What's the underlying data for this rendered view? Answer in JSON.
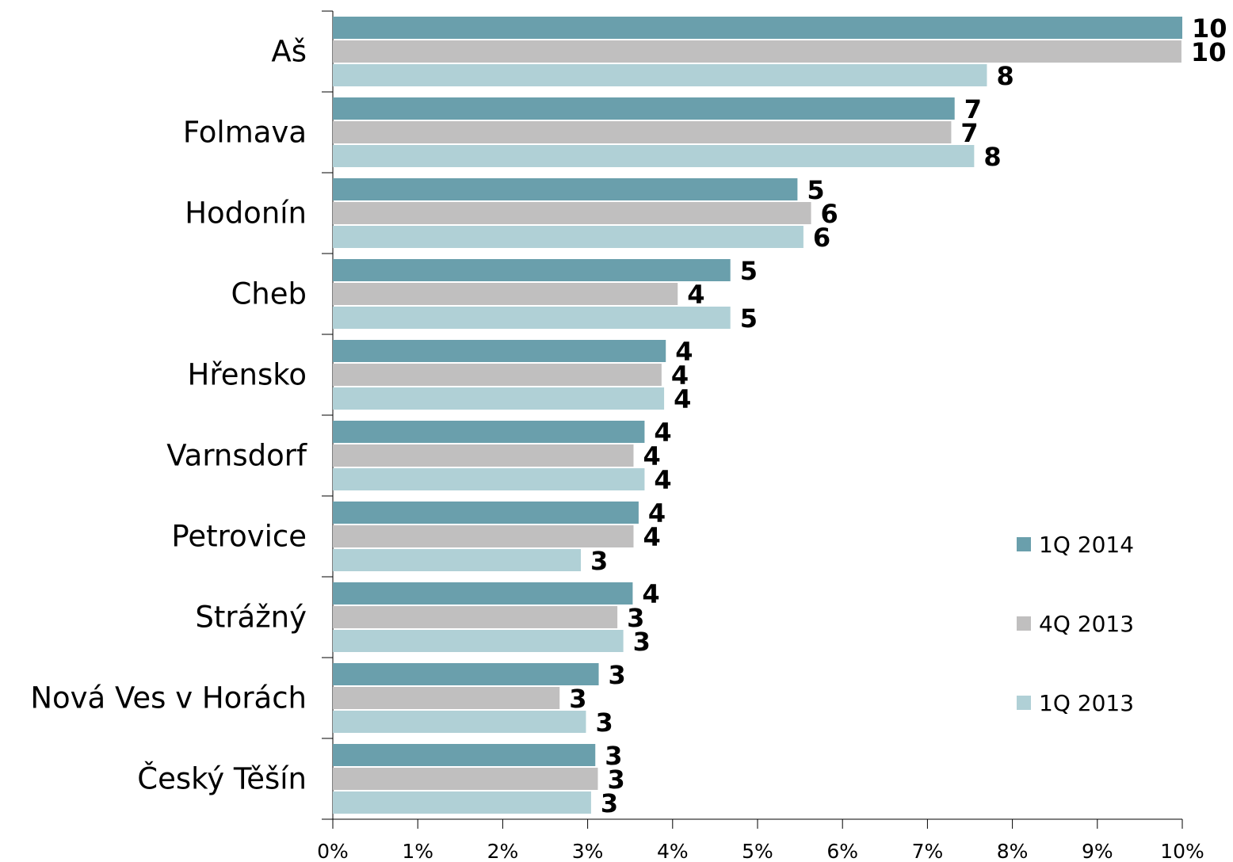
{
  "chart_data": {
    "type": "bar",
    "orientation": "horizontal",
    "categories": [
      "Aš",
      "Folmava",
      "Hodonín",
      "Cheb",
      "Hřensko",
      "Varnsdorf",
      "Petrovice",
      "Strážný",
      "Nová Ves v Horách",
      "Český Těšín"
    ],
    "series": [
      {
        "name": "1Q 2014",
        "color": "#6a9fac",
        "values": [
          10.0,
          7.32,
          5.47,
          4.68,
          3.92,
          3.67,
          3.6,
          3.53,
          3.13,
          3.09
        ],
        "value_labels": [
          "10",
          "7",
          "5",
          "5",
          "4",
          "4",
          "4",
          "4",
          "3",
          "3"
        ]
      },
      {
        "name": "4Q 2013",
        "color": "#c0bfbf",
        "values": [
          9.99,
          7.28,
          5.63,
          4.06,
          3.87,
          3.54,
          3.54,
          3.35,
          2.67,
          3.12
        ],
        "value_labels": [
          "10",
          "7",
          "6",
          "4",
          "4",
          "4",
          "4",
          "3",
          "3",
          "3"
        ]
      },
      {
        "name": "1Q 2013",
        "color": "#b0d0d6",
        "values": [
          7.7,
          7.55,
          5.54,
          4.68,
          3.9,
          3.67,
          2.92,
          3.42,
          2.98,
          3.04
        ],
        "value_labels": [
          "8",
          "8",
          "6",
          "5",
          "4",
          "4",
          "3",
          "3",
          "3",
          "3"
        ]
      }
    ],
    "xlim": [
      0,
      10
    ],
    "xticks": [
      {
        "value": 0,
        "label": "0%"
      },
      {
        "value": 1,
        "label": "1%"
      },
      {
        "value": 2,
        "label": "2%"
      },
      {
        "value": 3,
        "label": "3%"
      },
      {
        "value": 4,
        "label": "4%"
      },
      {
        "value": 5,
        "label": "5%"
      },
      {
        "value": 6,
        "label": "6%"
      },
      {
        "value": 7,
        "label": "7%"
      },
      {
        "value": 8,
        "label": "8%"
      },
      {
        "value": 9,
        "label": "9%"
      },
      {
        "value": 10,
        "label": "10%"
      }
    ],
    "grid": false,
    "legend": "right"
  }
}
